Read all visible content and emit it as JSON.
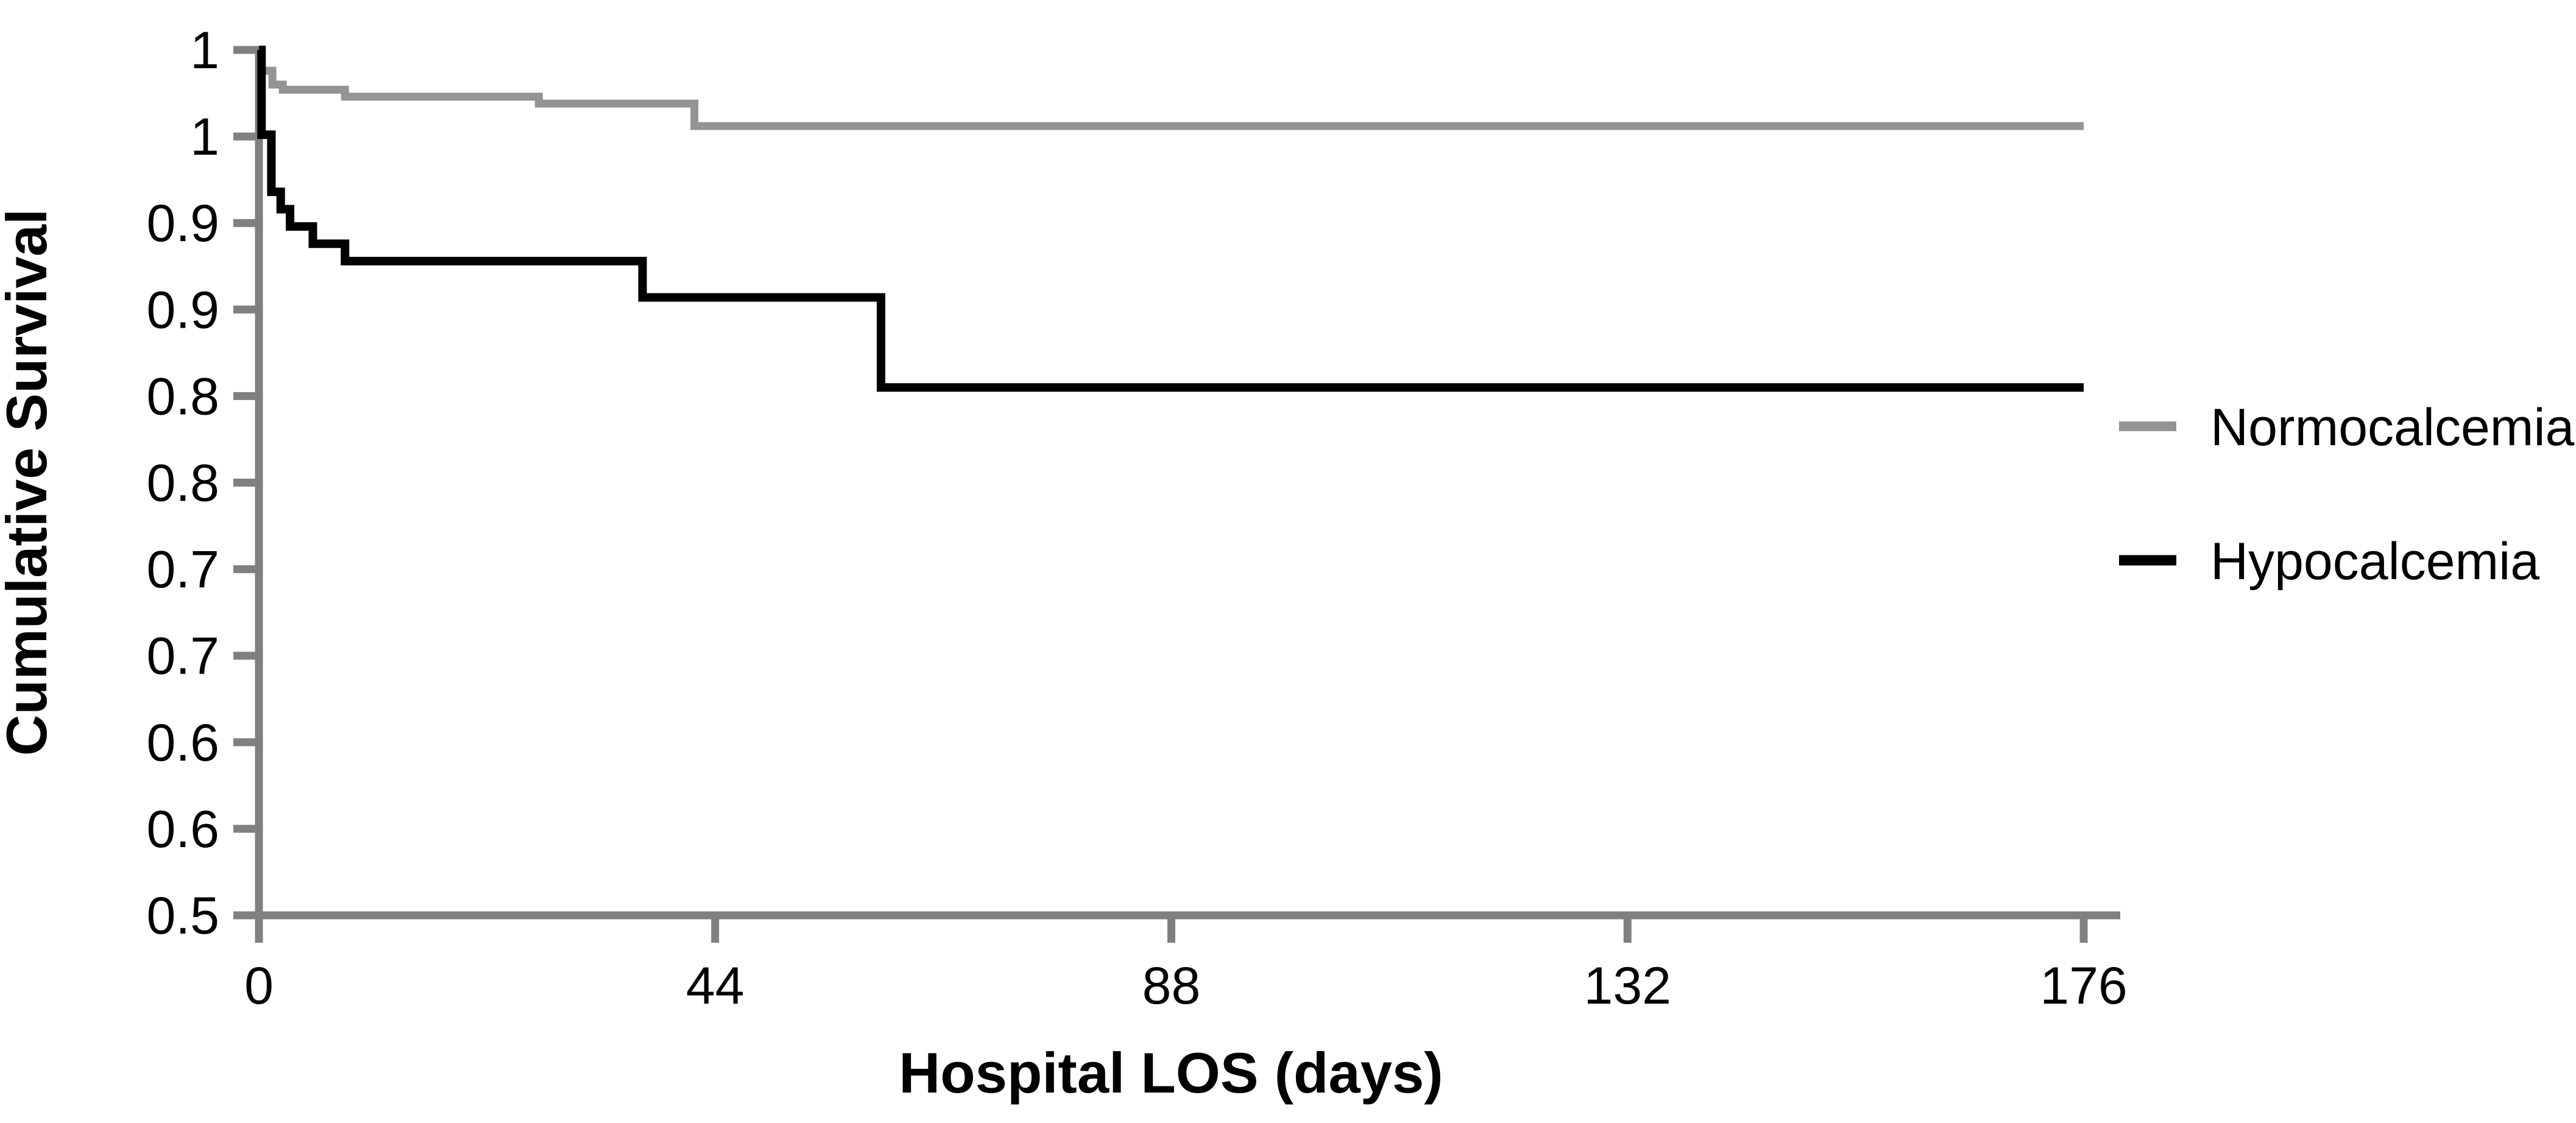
{
  "figure": {
    "background_color": "#ffffff",
    "axis_color": "#808080",
    "text_color": "#000000"
  },
  "chart_data": {
    "type": "line",
    "subtype": "kaplan-meier-step-survival",
    "title": "",
    "xlabel": "Hospital LOS (days)",
    "ylabel": "Cumulative Survival",
    "xlim": [
      0,
      176
    ],
    "ylim": [
      0.5,
      1.0
    ],
    "grid": false,
    "legend_position": "right",
    "x_ticks": [
      0,
      44,
      88,
      132,
      176
    ],
    "x_tick_labels": [
      "0",
      "44",
      "88",
      "132",
      "176"
    ],
    "y_ticks": [
      1.0,
      0.95,
      0.9,
      0.85,
      0.8,
      0.75,
      0.7,
      0.65,
      0.6,
      0.55,
      0.5
    ],
    "y_tick_labels": [
      "1",
      "1",
      "0.9",
      "0.9",
      "0.8",
      "0.8",
      "0.7",
      "0.7",
      "0.6",
      "0.6",
      "0.5"
    ],
    "series": [
      {
        "name": "Normocalcemia",
        "color": "#949494",
        "stroke_width": 13,
        "points": [
          [
            0,
            1.0
          ],
          [
            0.25,
            0.988
          ],
          [
            1.3,
            0.98
          ],
          [
            2.3,
            0.977
          ],
          [
            8.3,
            0.973
          ],
          [
            27,
            0.969
          ],
          [
            42,
            0.956
          ],
          [
            176,
            0.956
          ]
        ]
      },
      {
        "name": "Hypocalcemia",
        "color": "#000000",
        "stroke_width": 14,
        "points": [
          [
            0,
            1.0
          ],
          [
            0.25,
            0.951
          ],
          [
            1.2,
            0.918
          ],
          [
            2.1,
            0.908
          ],
          [
            3.0,
            0.898
          ],
          [
            5.2,
            0.888
          ],
          [
            8.3,
            0.878
          ],
          [
            37,
            0.857
          ],
          [
            60,
            0.805
          ],
          [
            176,
            0.805
          ]
        ]
      }
    ]
  }
}
